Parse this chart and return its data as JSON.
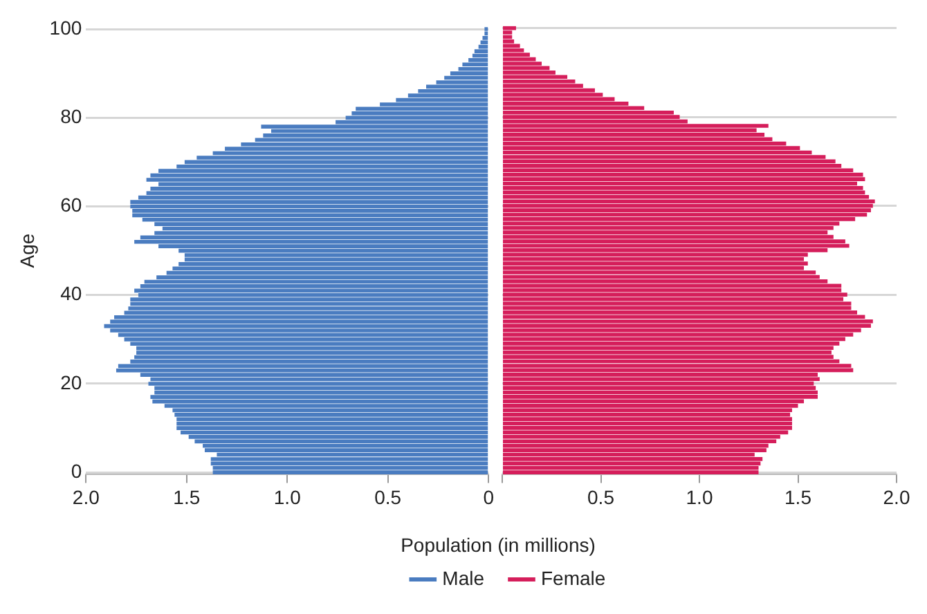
{
  "chart_data": [
    {
      "type": "bar",
      "orientation": "horizontal",
      "ylabel": "Age",
      "categories": [
        "100",
        null,
        null,
        null,
        null,
        null,
        null,
        null,
        null,
        null,
        null,
        null,
        null,
        null,
        null,
        null,
        null,
        null,
        null,
        null,
        "80",
        null,
        null,
        null,
        null,
        null,
        null,
        null,
        null,
        null,
        null,
        null,
        null,
        null,
        null,
        null,
        null,
        null,
        null,
        null,
        "60",
        null,
        null,
        null,
        null,
        null,
        null,
        null,
        null,
        null,
        null,
        null,
        null,
        null,
        null,
        null,
        null,
        null,
        null,
        null,
        "40",
        null,
        null,
        null,
        null,
        null,
        null,
        null,
        null,
        null,
        null,
        null,
        null,
        null,
        null,
        null,
        null,
        null,
        null,
        null,
        "20",
        null,
        null,
        null,
        null,
        null,
        null,
        null,
        null,
        null,
        null,
        null,
        null,
        null,
        null,
        null,
        null,
        null,
        null,
        null,
        "0"
      ],
      "series": [
        {
          "name": "Male",
          "color": "#4a7cc0",
          "values": [
            0.02,
            0.02,
            0.03,
            0.04,
            0.05,
            0.07,
            0.08,
            0.1,
            0.13,
            0.15,
            0.19,
            0.22,
            0.26,
            0.31,
            0.35,
            0.4,
            0.46,
            0.54,
            0.66,
            0.68,
            0.71,
            0.76,
            1.13,
            1.08,
            1.12,
            1.16,
            1.23,
            1.31,
            1.37,
            1.45,
            1.51,
            1.55,
            1.64,
            1.68,
            1.7,
            1.64,
            1.68,
            1.7,
            1.74,
            1.78,
            1.78,
            1.77,
            1.77,
            1.72,
            1.66,
            1.62,
            1.66,
            1.73,
            1.76,
            1.64,
            1.54,
            1.51,
            1.51,
            1.54,
            1.57,
            1.6,
            1.65,
            1.71,
            1.73,
            1.76,
            1.74,
            1.78,
            1.78,
            1.79,
            1.81,
            1.86,
            1.88,
            1.91,
            1.88,
            1.84,
            1.81,
            1.78,
            1.75,
            1.75,
            1.76,
            1.78,
            1.84,
            1.85,
            1.73,
            1.68,
            1.69,
            1.66,
            1.66,
            1.68,
            1.67,
            1.61,
            1.57,
            1.56,
            1.55,
            1.55,
            1.55,
            1.53,
            1.49,
            1.46,
            1.42,
            1.41,
            1.35,
            1.38,
            1.38,
            1.37,
            1.37
          ]
        }
      ],
      "xlim": [
        2,
        0
      ],
      "xticks": [
        {
          "value": 2,
          "label": "2.0"
        },
        1.5,
        {
          "value": 1,
          "label": "1.0"
        },
        0.5,
        0
      ],
      "grid": "y",
      "legend": "bottom"
    },
    {
      "type": "bar",
      "orientation": "horizontal",
      "xlabel": "Population (in millions)",
      "tick_labels": "x",
      "categories": [
        "100",
        null,
        null,
        null,
        null,
        null,
        null,
        null,
        null,
        null,
        null,
        null,
        null,
        null,
        null,
        null,
        null,
        null,
        null,
        null,
        "80",
        null,
        null,
        null,
        null,
        null,
        null,
        null,
        null,
        null,
        null,
        null,
        null,
        null,
        null,
        null,
        null,
        null,
        null,
        null,
        "60",
        null,
        null,
        null,
        null,
        null,
        null,
        null,
        null,
        null,
        null,
        null,
        null,
        null,
        null,
        null,
        null,
        null,
        null,
        null,
        "40",
        null,
        null,
        null,
        null,
        null,
        null,
        null,
        null,
        null,
        null,
        null,
        null,
        null,
        null,
        null,
        null,
        null,
        null,
        null,
        "20",
        null,
        null,
        null,
        null,
        null,
        null,
        null,
        null,
        null,
        null,
        null,
        null,
        null,
        null,
        null,
        null,
        null,
        null,
        null,
        "0"
      ],
      "series": [
        {
          "name": "Female",
          "color": "#d51e5b",
          "values": [
            0.07,
            0.05,
            0.05,
            0.06,
            0.09,
            0.11,
            0.14,
            0.17,
            0.2,
            0.24,
            0.27,
            0.33,
            0.37,
            0.41,
            0.47,
            0.51,
            0.57,
            0.64,
            0.72,
            0.87,
            0.9,
            0.94,
            1.35,
            1.29,
            1.33,
            1.37,
            1.44,
            1.51,
            1.57,
            1.64,
            1.69,
            1.72,
            1.78,
            1.83,
            1.84,
            1.8,
            1.83,
            1.84,
            1.86,
            1.89,
            1.88,
            1.87,
            1.85,
            1.79,
            1.71,
            1.68,
            1.65,
            1.68,
            1.74,
            1.76,
            1.65,
            1.55,
            1.53,
            1.55,
            1.53,
            1.59,
            1.61,
            1.65,
            1.72,
            1.72,
            1.75,
            1.73,
            1.77,
            1.77,
            1.8,
            1.84,
            1.88,
            1.87,
            1.82,
            1.78,
            1.74,
            1.71,
            1.68,
            1.67,
            1.68,
            1.71,
            1.77,
            1.78,
            1.6,
            1.61,
            1.58,
            1.59,
            1.6,
            1.6,
            1.53,
            1.5,
            1.47,
            1.46,
            1.47,
            1.47,
            1.47,
            1.45,
            1.41,
            1.39,
            1.35,
            1.34,
            1.28,
            1.32,
            1.31,
            1.3,
            1.3
          ]
        }
      ],
      "xlim": [
        0,
        2
      ],
      "xticks": [
        {
          "value": 0,
          "label": null
        },
        0.5,
        {
          "value": 1,
          "label": "1.0"
        },
        1.5,
        {
          "value": 2,
          "label": "2.0"
        }
      ],
      "grid": "y",
      "legend": "bottom"
    }
  ]
}
